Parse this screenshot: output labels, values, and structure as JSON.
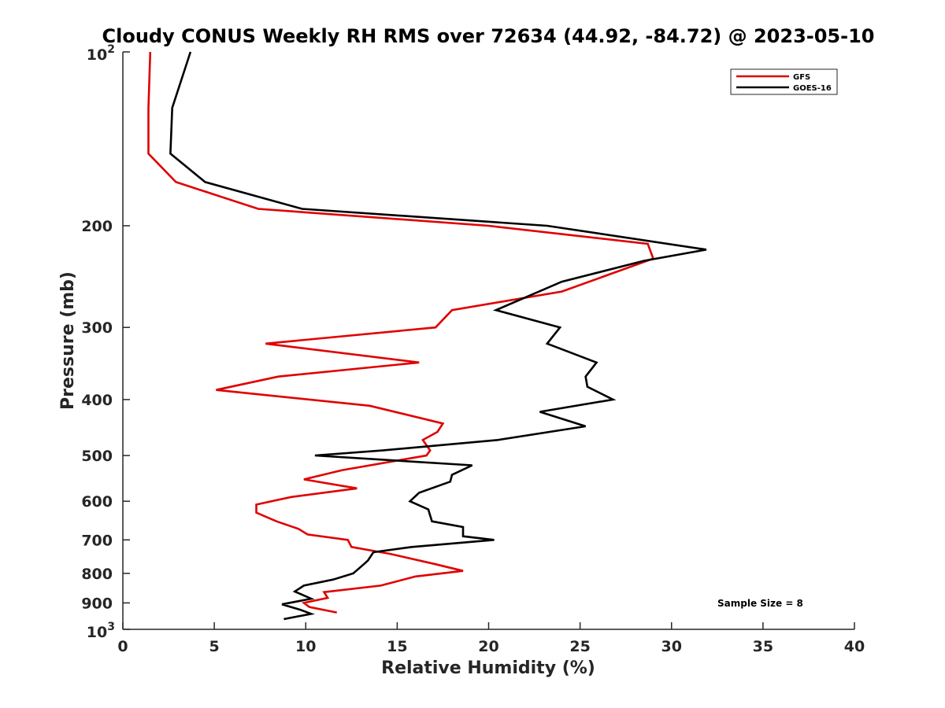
{
  "chart_data": {
    "type": "line",
    "title": "Cloudy CONUS Weekly RH RMS over 72634 (44.92, -84.72) @ 2023-05-10",
    "xlabel": "Relative Humidity (%)",
    "ylabel": "Pressure (mb)",
    "xlim": [
      0,
      40
    ],
    "ylim": [
      1000,
      100
    ],
    "yscale": "log",
    "y_reversed": true,
    "grid": false,
    "legend_position": "top-right",
    "x_ticks": [
      {
        "value": 0,
        "label": "0"
      },
      {
        "value": 5,
        "label": "5"
      },
      {
        "value": 10,
        "label": "10"
      },
      {
        "value": 15,
        "label": "15"
      },
      {
        "value": 20,
        "label": "20"
      },
      {
        "value": 25,
        "label": "25"
      },
      {
        "value": 30,
        "label": "30"
      },
      {
        "value": 35,
        "label": "35"
      },
      {
        "value": 40,
        "label": "40"
      }
    ],
    "y_ticks": [
      {
        "value": 200,
        "label": "200"
      },
      {
        "value": 300,
        "label": "300"
      },
      {
        "value": 400,
        "label": "400"
      },
      {
        "value": 500,
        "label": "500"
      },
      {
        "value": 600,
        "label": "600"
      },
      {
        "value": 700,
        "label": "700"
      },
      {
        "value": 800,
        "label": "800"
      },
      {
        "value": 900,
        "label": "900"
      }
    ],
    "y_power_ticks": [
      {
        "value": 100,
        "base": "10",
        "exp": "2"
      },
      {
        "value": 1000,
        "base": "10",
        "exp": "3"
      }
    ],
    "annotation": "Sample Size = 8",
    "series": [
      {
        "name": "GFS",
        "color": "#e00000",
        "points": [
          [
            1.5,
            100
          ],
          [
            1.4,
            125
          ],
          [
            1.4,
            150
          ],
          [
            2.9,
            168
          ],
          [
            7.4,
            187
          ],
          [
            20.0,
            200
          ],
          [
            28.7,
            215
          ],
          [
            29.0,
            228
          ],
          [
            24.0,
            260
          ],
          [
            18.0,
            280
          ],
          [
            17.1,
            300
          ],
          [
            7.8,
            320
          ],
          [
            16.2,
            345
          ],
          [
            8.5,
            365
          ],
          [
            5.1,
            385
          ],
          [
            13.5,
            410
          ],
          [
            17.5,
            440
          ],
          [
            17.2,
            455
          ],
          [
            16.4,
            470
          ],
          [
            16.8,
            490
          ],
          [
            16.6,
            500
          ],
          [
            12.0,
            530
          ],
          [
            9.9,
            550
          ],
          [
            12.8,
            570
          ],
          [
            9.2,
            590
          ],
          [
            7.3,
            608
          ],
          [
            7.3,
            628
          ],
          [
            8.4,
            650
          ],
          [
            9.6,
            670
          ],
          [
            10.1,
            685
          ],
          [
            12.3,
            700
          ],
          [
            12.5,
            720
          ],
          [
            14.6,
            740
          ],
          [
            17.0,
            770
          ],
          [
            18.6,
            792
          ],
          [
            16.0,
            810
          ],
          [
            14.1,
            840
          ],
          [
            11.0,
            862
          ],
          [
            11.2,
            882
          ],
          [
            9.9,
            900
          ],
          [
            10.2,
            915
          ],
          [
            11.7,
            935
          ]
        ]
      },
      {
        "name": "GOES-16",
        "color": "#000000",
        "points": [
          [
            3.7,
            100
          ],
          [
            2.7,
            125
          ],
          [
            2.6,
            150
          ],
          [
            4.5,
            168
          ],
          [
            9.8,
            187
          ],
          [
            23.2,
            200
          ],
          [
            31.9,
            220
          ],
          [
            28.5,
            230
          ],
          [
            24.0,
            250
          ],
          [
            20.4,
            280
          ],
          [
            23.9,
            300
          ],
          [
            23.2,
            320
          ],
          [
            25.9,
            345
          ],
          [
            25.3,
            365
          ],
          [
            25.4,
            380
          ],
          [
            26.8,
            400
          ],
          [
            22.8,
            420
          ],
          [
            25.3,
            445
          ],
          [
            20.5,
            470
          ],
          [
            14.2,
            490
          ],
          [
            10.5,
            500
          ],
          [
            19.1,
            520
          ],
          [
            18.0,
            540
          ],
          [
            17.9,
            555
          ],
          [
            16.2,
            580
          ],
          [
            15.7,
            600
          ],
          [
            16.7,
            620
          ],
          [
            16.9,
            650
          ],
          [
            18.6,
            665
          ],
          [
            18.6,
            690
          ],
          [
            20.3,
            700
          ],
          [
            15.8,
            720
          ],
          [
            13.7,
            735
          ],
          [
            13.4,
            760
          ],
          [
            13.2,
            770
          ],
          [
            12.6,
            800
          ],
          [
            11.5,
            820
          ],
          [
            9.9,
            840
          ],
          [
            9.4,
            860
          ],
          [
            10.3,
            885
          ],
          [
            8.7,
            905
          ],
          [
            9.7,
            925
          ],
          [
            10.3,
            940
          ],
          [
            8.8,
            960
          ]
        ]
      }
    ]
  }
}
